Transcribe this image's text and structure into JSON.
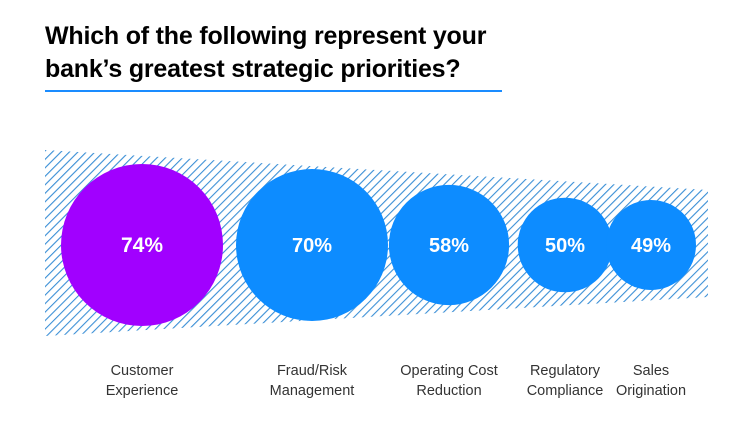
{
  "chart_data": {
    "type": "bubble",
    "title": "Which of the following represent your bank’s greatest strategic priorities?",
    "unit": "%",
    "categories": [
      [
        "Customer",
        "Experience"
      ],
      [
        "Fraud/Risk",
        "Management"
      ],
      [
        "Operating Cost",
        "Reduction"
      ],
      [
        "Regulatory",
        "Compliance"
      ],
      [
        "Sales",
        "Origination"
      ]
    ],
    "values": [
      74,
      70,
      58,
      50,
      49
    ],
    "value_labels": [
      "74%",
      "70%",
      "58%",
      "50%",
      "49%"
    ],
    "highlight_index": 0
  },
  "colors": {
    "highlight": "#a100ff",
    "bubble": "#0d8cff",
    "hatch": "#3a8fd6",
    "rule": "#1a8cff",
    "label": "#333333"
  }
}
